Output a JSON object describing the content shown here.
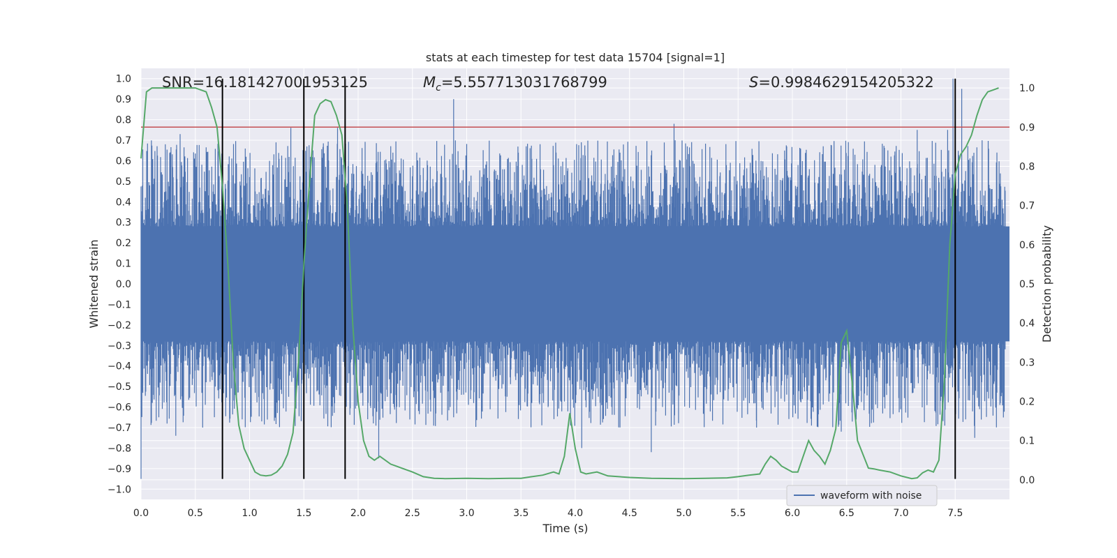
{
  "chart_data": {
    "type": "line",
    "title": "stats at each timestep for test data 15704 [signal=1]",
    "xlabel": "Time (s)",
    "ylabel_left": "Whitened strain",
    "ylabel_right": "Detection probability",
    "xlim": [
      0.0,
      8.0
    ],
    "ylim_left": [
      -1.05,
      1.05
    ],
    "ylim_right": [
      -0.05,
      1.05
    ],
    "xticks": [
      "0.0",
      "0.5",
      "1.0",
      "1.5",
      "2.0",
      "2.5",
      "3.0",
      "3.5",
      "4.0",
      "4.5",
      "5.0",
      "5.5",
      "6.0",
      "6.5",
      "7.0",
      "7.5"
    ],
    "yticks_left": [
      "1.0",
      "0.9",
      "0.8",
      "0.7",
      "0.6",
      "0.5",
      "0.4",
      "0.3",
      "0.2",
      "0.1",
      "0.0",
      "−0.1",
      "−0.2",
      "−0.3",
      "−0.4",
      "−0.5",
      "−0.6",
      "−0.7",
      "−0.8",
      "−0.9",
      "−1.0"
    ],
    "yticks_right": [
      "1.0",
      "0.9",
      "0.8",
      "0.7",
      "0.6",
      "0.5",
      "0.4",
      "0.3",
      "0.2",
      "0.1",
      "0.0"
    ],
    "grid": true,
    "legend_position": "lower-right",
    "annotations": {
      "snr": "SNR=16.181427001953125",
      "mc_symbol": "M",
      "mc_sub": "c",
      "mc_value": "=5.557713031768799",
      "s_symbol": "S",
      "s_value": "=0.9984629154205322"
    },
    "threshold_right": 0.9,
    "vertical_lines_x": [
      0.75,
      1.5,
      1.88,
      7.5
    ],
    "vertical_lines_ylim": [
      -0.95,
      1.0
    ],
    "series": [
      {
        "name": "waveform with noise",
        "axis": "left",
        "color": "#4c72b0",
        "kind": "noise",
        "core_amplitude": 0.28,
        "peaks": [
          {
            "x": 0.0,
            "y": -0.95
          },
          {
            "x": 0.24,
            "y": 0.62
          },
          {
            "x": 0.32,
            "y": -0.74
          },
          {
            "x": 0.36,
            "y": 0.73
          },
          {
            "x": 1.38,
            "y": 0.76
          },
          {
            "x": 1.36,
            "y": -0.55
          },
          {
            "x": 1.81,
            "y": 0.76
          },
          {
            "x": 2.19,
            "y": -0.85
          },
          {
            "x": 2.88,
            "y": 0.9
          },
          {
            "x": 2.88,
            "y": -0.65
          },
          {
            "x": 3.75,
            "y": -0.6
          },
          {
            "x": 4.06,
            "y": -0.8
          },
          {
            "x": 4.7,
            "y": -0.82
          },
          {
            "x": 4.91,
            "y": 0.78
          },
          {
            "x": 5.67,
            "y": -0.7
          },
          {
            "x": 6.45,
            "y": -0.72
          },
          {
            "x": 7.15,
            "y": 0.75
          },
          {
            "x": 7.43,
            "y": 0.75
          },
          {
            "x": 7.48,
            "y": 1.0
          },
          {
            "x": 7.56,
            "y": 0.95
          },
          {
            "x": 7.68,
            "y": -0.75
          }
        ]
      },
      {
        "name": "",
        "axis": "right",
        "color": "#55a868",
        "x": [
          0.0,
          0.05,
          0.1,
          0.2,
          0.3,
          0.4,
          0.5,
          0.6,
          0.65,
          0.7,
          0.75,
          0.8,
          0.85,
          0.9,
          0.95,
          1.0,
          1.05,
          1.1,
          1.15,
          1.2,
          1.25,
          1.3,
          1.35,
          1.4,
          1.45,
          1.5,
          1.55,
          1.6,
          1.65,
          1.7,
          1.75,
          1.8,
          1.85,
          1.9,
          1.95,
          2.0,
          2.05,
          2.1,
          2.15,
          2.2,
          2.25,
          2.3,
          2.35,
          2.4,
          2.5,
          2.6,
          2.7,
          2.8,
          3.0,
          3.2,
          3.4,
          3.5,
          3.6,
          3.7,
          3.8,
          3.85,
          3.9,
          3.95,
          4.0,
          4.05,
          4.1,
          4.2,
          4.3,
          4.5,
          4.7,
          5.0,
          5.2,
          5.4,
          5.5,
          5.6,
          5.7,
          5.75,
          5.8,
          5.85,
          5.9,
          6.0,
          6.05,
          6.1,
          6.15,
          6.2,
          6.25,
          6.3,
          6.35,
          6.4,
          6.45,
          6.5,
          6.55,
          6.6,
          6.7,
          6.75,
          6.8,
          6.9,
          7.0,
          7.1,
          7.15,
          7.2,
          7.25,
          7.3,
          7.35,
          7.4,
          7.45,
          7.5,
          7.55,
          7.6,
          7.65,
          7.7,
          7.75,
          7.8,
          7.85,
          7.9
        ],
        "y": [
          0.82,
          0.99,
          1.0,
          1.0,
          1.0,
          1.0,
          1.0,
          0.99,
          0.95,
          0.9,
          0.75,
          0.55,
          0.3,
          0.14,
          0.08,
          0.05,
          0.02,
          0.012,
          0.01,
          0.012,
          0.02,
          0.035,
          0.065,
          0.12,
          0.3,
          0.55,
          0.75,
          0.93,
          0.96,
          0.97,
          0.965,
          0.93,
          0.88,
          0.7,
          0.4,
          0.2,
          0.1,
          0.06,
          0.05,
          0.06,
          0.05,
          0.04,
          0.035,
          0.03,
          0.02,
          0.008,
          0.004,
          0.003,
          0.004,
          0.003,
          0.004,
          0.004,
          0.008,
          0.012,
          0.02,
          0.015,
          0.06,
          0.17,
          0.08,
          0.02,
          0.015,
          0.02,
          0.01,
          0.006,
          0.004,
          0.003,
          0.004,
          0.005,
          0.008,
          0.012,
          0.015,
          0.04,
          0.06,
          0.05,
          0.035,
          0.02,
          0.02,
          0.06,
          0.1,
          0.075,
          0.06,
          0.04,
          0.075,
          0.13,
          0.35,
          0.38,
          0.25,
          0.1,
          0.03,
          0.028,
          0.025,
          0.02,
          0.01,
          0.003,
          0.005,
          0.018,
          0.025,
          0.02,
          0.05,
          0.25,
          0.6,
          0.78,
          0.83,
          0.85,
          0.88,
          0.93,
          0.97,
          0.99,
          0.995,
          1.0
        ]
      }
    ]
  }
}
